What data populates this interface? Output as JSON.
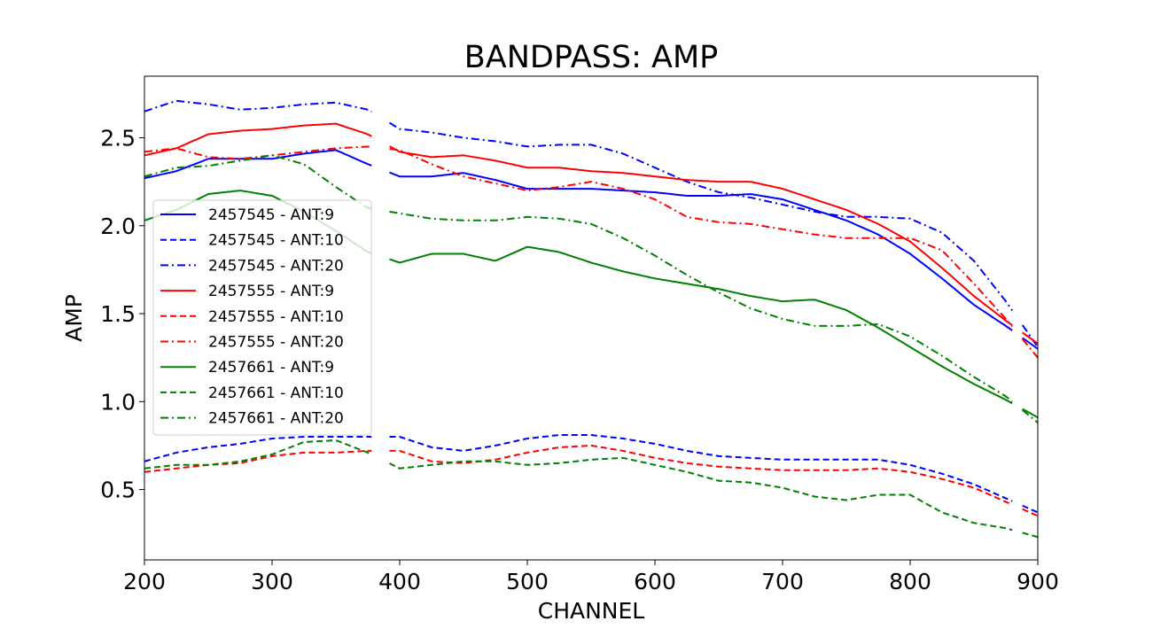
{
  "chart_data": {
    "type": "line",
    "title": "BANDPASS: AMP",
    "xlabel": "CHANNEL",
    "ylabel": "AMP",
    "xlim": [
      200,
      900
    ],
    "ylim": [
      0.1,
      2.85
    ],
    "xticks": [
      "200",
      "300",
      "400",
      "500",
      "600",
      "700",
      "800",
      "900"
    ],
    "yticks": [
      "0.5",
      "1.0",
      "1.5",
      "2.0",
      "2.5"
    ],
    "grid": false,
    "legend_position": "center-left",
    "x": [
      200,
      225,
      250,
      275,
      300,
      325,
      350,
      375,
      400,
      425,
      450,
      475,
      500,
      525,
      550,
      575,
      600,
      625,
      650,
      675,
      700,
      725,
      750,
      775,
      800,
      825,
      850,
      875,
      900
    ],
    "gaps": [
      [
        378,
        392
      ],
      [
        880,
        887
      ]
    ],
    "series": [
      {
        "name": "2457545 - ANT:9",
        "color": "#0000ff",
        "dash": "solid",
        "values": [
          2.27,
          2.31,
          2.38,
          2.38,
          2.38,
          2.41,
          2.43,
          2.35,
          2.28,
          2.28,
          2.3,
          2.26,
          2.21,
          2.21,
          2.21,
          2.2,
          2.19,
          2.17,
          2.17,
          2.18,
          2.15,
          2.09,
          2.03,
          1.95,
          1.84,
          1.7,
          1.55,
          1.43,
          1.3
        ]
      },
      {
        "name": "2457545 - ANT:10",
        "color": "#0000ff",
        "dash": "dashed",
        "values": [
          0.66,
          0.71,
          0.74,
          0.76,
          0.79,
          0.8,
          0.8,
          0.8,
          0.8,
          0.74,
          0.72,
          0.75,
          0.79,
          0.81,
          0.81,
          0.79,
          0.76,
          0.72,
          0.69,
          0.68,
          0.67,
          0.67,
          0.67,
          0.67,
          0.64,
          0.59,
          0.53,
          0.45,
          0.37
        ]
      },
      {
        "name": "2457545 - ANT:20",
        "color": "#0000ff",
        "dash": "dashdot",
        "values": [
          2.65,
          2.71,
          2.69,
          2.66,
          2.67,
          2.69,
          2.7,
          2.66,
          2.55,
          2.53,
          2.5,
          2.48,
          2.45,
          2.46,
          2.46,
          2.41,
          2.33,
          2.25,
          2.19,
          2.16,
          2.12,
          2.08,
          2.05,
          2.05,
          2.04,
          1.96,
          1.8,
          1.57,
          1.31
        ]
      },
      {
        "name": "2457555 - ANT:9",
        "color": "#ff0000",
        "dash": "solid",
        "values": [
          2.4,
          2.44,
          2.52,
          2.54,
          2.55,
          2.57,
          2.58,
          2.52,
          2.42,
          2.39,
          2.4,
          2.37,
          2.33,
          2.33,
          2.31,
          2.3,
          2.28,
          2.26,
          2.25,
          2.25,
          2.21,
          2.15,
          2.09,
          2.01,
          1.91,
          1.76,
          1.6,
          1.46,
          1.33
        ]
      },
      {
        "name": "2457555 - ANT:10",
        "color": "#ff0000",
        "dash": "dashed",
        "values": [
          0.6,
          0.62,
          0.64,
          0.65,
          0.69,
          0.71,
          0.71,
          0.72,
          0.72,
          0.66,
          0.65,
          0.67,
          0.71,
          0.74,
          0.75,
          0.72,
          0.68,
          0.65,
          0.63,
          0.62,
          0.61,
          0.61,
          0.61,
          0.62,
          0.6,
          0.56,
          0.51,
          0.43,
          0.35
        ]
      },
      {
        "name": "2457555 - ANT:20",
        "color": "#ff0000",
        "dash": "dashdot",
        "values": [
          2.42,
          2.44,
          2.39,
          2.38,
          2.4,
          2.42,
          2.44,
          2.45,
          2.43,
          2.35,
          2.28,
          2.24,
          2.2,
          2.22,
          2.25,
          2.21,
          2.15,
          2.05,
          2.02,
          2.01,
          1.98,
          1.95,
          1.93,
          1.93,
          1.93,
          1.86,
          1.67,
          1.47,
          1.25
        ]
      },
      {
        "name": "2457661 - ANT:9",
        "color": "#008000",
        "dash": "solid",
        "values": [
          2.03,
          2.09,
          2.18,
          2.2,
          2.17,
          2.08,
          1.97,
          1.85,
          1.79,
          1.84,
          1.84,
          1.8,
          1.88,
          1.85,
          1.79,
          1.74,
          1.7,
          1.67,
          1.64,
          1.6,
          1.57,
          1.58,
          1.52,
          1.42,
          1.31,
          1.2,
          1.1,
          1.01,
          0.91
        ]
      },
      {
        "name": "2457661 - ANT:10",
        "color": "#008000",
        "dash": "dashed",
        "values": [
          0.62,
          0.64,
          0.64,
          0.66,
          0.7,
          0.77,
          0.78,
          0.71,
          0.62,
          0.64,
          0.66,
          0.66,
          0.64,
          0.65,
          0.67,
          0.68,
          0.64,
          0.6,
          0.55,
          0.54,
          0.51,
          0.46,
          0.44,
          0.47,
          0.47,
          0.37,
          0.31,
          0.28,
          0.23
        ]
      },
      {
        "name": "2457661 - ANT:20",
        "color": "#008000",
        "dash": "dashdot",
        "values": [
          2.28,
          2.33,
          2.34,
          2.37,
          2.4,
          2.35,
          2.22,
          2.1,
          2.07,
          2.04,
          2.03,
          2.03,
          2.05,
          2.04,
          2.01,
          1.93,
          1.83,
          1.72,
          1.62,
          1.53,
          1.47,
          1.43,
          1.43,
          1.44,
          1.37,
          1.26,
          1.14,
          1.03,
          0.88
        ]
      }
    ]
  }
}
